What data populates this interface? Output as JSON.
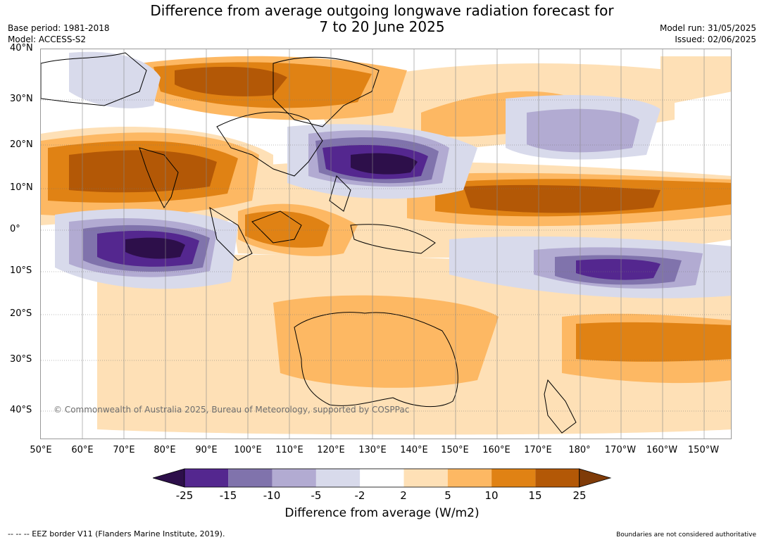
{
  "title_line1": "Difference from average outgoing longwave radiation forecast for",
  "title_line2": "7 to 20 June 2025",
  "base_period": "Base period: 1981-2018",
  "model": "Model: ACCESS-S2",
  "model_run": "Model run: 31/05/2025",
  "issued": "Issued: 02/06/2025",
  "lat_labels": [
    "40°N",
    "30°N",
    "20°N",
    "10°N",
    "0°",
    "10°S",
    "20°S",
    "30°S",
    "40°S"
  ],
  "lon_labels": [
    "50°E",
    "60°E",
    "70°E",
    "80°E",
    "90°E",
    "100°E",
    "110°E",
    "120°E",
    "130°E",
    "140°E",
    "150°E",
    "160°E",
    "170°E",
    "180°",
    "170°W",
    "160°W",
    "150°W"
  ],
  "copyright": "© Commonwealth of Australia 2025, Bureau of Meteorology, supported by COSPPac",
  "colorbar": {
    "ticks": [
      "-25",
      "-15",
      "-10",
      "-5",
      "-2",
      "2",
      "5",
      "10",
      "15",
      "25"
    ],
    "colors": [
      "#2d0f4a",
      "#54278f",
      "#8073ac",
      "#b2abd2",
      "#d8daeb",
      "#ffffff",
      "#fee0b6",
      "#fdb863",
      "#e08214",
      "#b35806",
      "#7f3b08"
    ],
    "title": "Difference from average (W/m2)"
  },
  "footer_left": "--  --  -- EEZ border V11 (Flanders Marine Institute, 2019).",
  "footer_right": "Boundaries are not considered authoritative"
}
